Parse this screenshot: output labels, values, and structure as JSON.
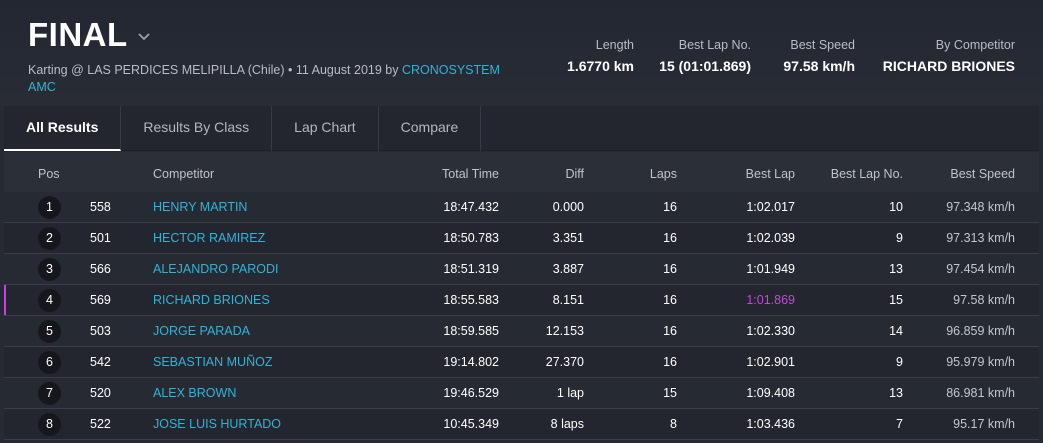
{
  "header": {
    "title": "FINAL",
    "subtitle_prefix": "Karting @ LAS PERDICES MELIPILLA (Chile) • 11 August 2019 by",
    "organizer": "CRONOSYSTEM AMC"
  },
  "stats": {
    "length_label": "Length",
    "length_value": "1.6770 km",
    "best_lap_no_label": "Best Lap No.",
    "best_lap_no_value": "15 (01:01.869)",
    "best_speed_label": "Best Speed",
    "best_speed_value": "97.58 km/h",
    "by_competitor_label": "By Competitor",
    "by_competitor_value": "RICHARD BRIONES"
  },
  "tabs": [
    {
      "label": "All Results"
    },
    {
      "label": "Results By Class"
    },
    {
      "label": "Lap Chart"
    },
    {
      "label": "Compare"
    }
  ],
  "table": {
    "columns": {
      "pos": "Pos",
      "competitor": "Competitor",
      "total_time": "Total Time",
      "diff": "Diff",
      "laps": "Laps",
      "best_lap": "Best Lap",
      "best_lap_no": "Best Lap No.",
      "best_speed": "Best Speed"
    },
    "rows": [
      {
        "pos": "1",
        "num": "558",
        "competitor": "HENRY MARTIN",
        "total_time": "18:47.432",
        "diff": "0.000",
        "laps": "16",
        "best_lap": "1:02.017",
        "best_lap_no": "10",
        "best_speed": "97.348 km/h"
      },
      {
        "pos": "2",
        "num": "501",
        "competitor": "HECTOR RAMIREZ",
        "total_time": "18:50.783",
        "diff": "3.351",
        "laps": "16",
        "best_lap": "1:02.039",
        "best_lap_no": "9",
        "best_speed": "97.313 km/h"
      },
      {
        "pos": "3",
        "num": "566",
        "competitor": "ALEJANDRO PARODI",
        "total_time": "18:51.319",
        "diff": "3.887",
        "laps": "16",
        "best_lap": "1:01.949",
        "best_lap_no": "13",
        "best_speed": "97.454 km/h"
      },
      {
        "pos": "4",
        "num": "569",
        "competitor": "RICHARD BRIONES",
        "total_time": "18:55.583",
        "diff": "8.151",
        "laps": "16",
        "best_lap": "1:01.869",
        "best_lap_no": "15",
        "best_speed": "97.58 km/h"
      },
      {
        "pos": "5",
        "num": "503",
        "competitor": "JORGE PARADA",
        "total_time": "18:59.585",
        "diff": "12.153",
        "laps": "16",
        "best_lap": "1:02.330",
        "best_lap_no": "14",
        "best_speed": "96.859 km/h"
      },
      {
        "pos": "6",
        "num": "542",
        "competitor": "SEBASTIAN MUÑOZ",
        "total_time": "19:14.802",
        "diff": "27.370",
        "laps": "16",
        "best_lap": "1:02.901",
        "best_lap_no": "9",
        "best_speed": "95.979 km/h"
      },
      {
        "pos": "7",
        "num": "520",
        "competitor": "ALEX BROWN",
        "total_time": "19:46.529",
        "diff": "1 lap",
        "laps": "15",
        "best_lap": "1:09.408",
        "best_lap_no": "13",
        "best_speed": "86.981 km/h"
      },
      {
        "pos": "8",
        "num": "522",
        "competitor": "JOSE LUIS HURTADO",
        "total_time": "10:45.349",
        "diff": "8 laps",
        "laps": "8",
        "best_lap": "1:03.436",
        "best_lap_no": "7",
        "best_speed": "95.17 km/h"
      }
    ]
  },
  "colors": {
    "accent": "#2fb4d8",
    "fastest_lap": "#c04ad8",
    "background": "#262a33"
  }
}
